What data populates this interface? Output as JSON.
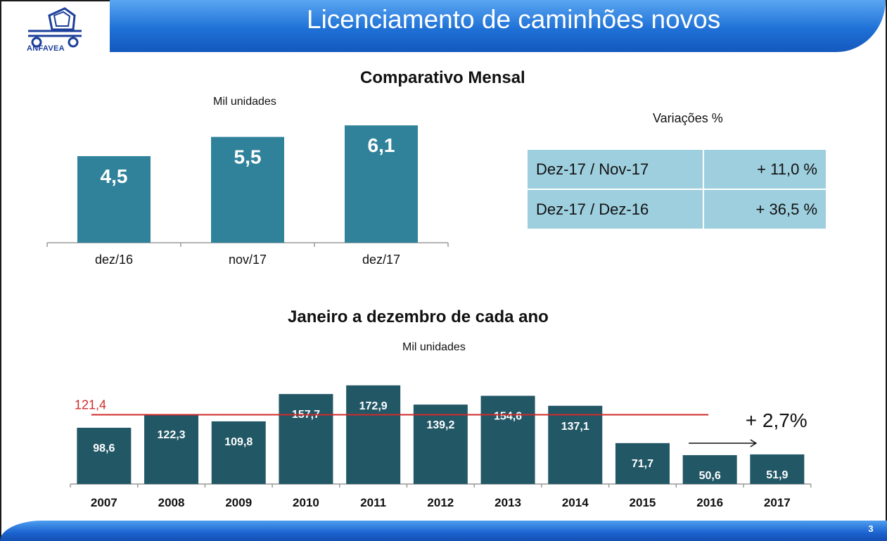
{
  "header": {
    "title": "Licenciamento de caminhões novos",
    "logo_text": "ANFAVEA"
  },
  "colors": {
    "header_band": "#1f71d6",
    "monthly_bar": "#2f829a",
    "annual_bar": "#225766",
    "reference_line": "#d02a2a",
    "table_cell": "#9ecfde"
  },
  "monthly": {
    "title": "Comparativo Mensal",
    "unit": "Mil unidades"
  },
  "variations": {
    "title": "Variações %",
    "rows": [
      {
        "label": "Dez-17 / Nov-17",
        "value": "+ 11,0 %"
      },
      {
        "label": "Dez-17 / Dez-16",
        "value": "+ 36,5 %"
      }
    ]
  },
  "annual": {
    "title": "Janeiro a dezembro de cada ano",
    "unit": "Mil unidades",
    "change_label": "+ 2,7%"
  },
  "footer": {
    "page_number": "3"
  },
  "chart_data": [
    {
      "type": "bar",
      "title": "Comparativo Mensal",
      "ylabel": "Mil unidades",
      "categories": [
        "dez/16",
        "nov/17",
        "dez/17"
      ],
      "values": [
        4.5,
        5.5,
        6.1
      ],
      "value_labels": [
        "4,5",
        "5,5",
        "6,1"
      ],
      "ylim": [
        0,
        6.4
      ],
      "grid": false
    },
    {
      "type": "bar",
      "title": "Janeiro a dezembro de cada ano",
      "ylabel": "Mil unidades",
      "categories": [
        "2007",
        "2008",
        "2009",
        "2010",
        "2011",
        "2012",
        "2013",
        "2014",
        "2015",
        "2016",
        "2017"
      ],
      "values": [
        98.6,
        122.3,
        109.8,
        157.7,
        172.9,
        139.2,
        154.6,
        137.1,
        71.7,
        50.6,
        51.9
      ],
      "value_labels": [
        "98,6",
        "122,3",
        "109,8",
        "157,7",
        "172,9",
        "139,2",
        "154,6",
        "137,1",
        "71,7",
        "50,6",
        "51,9"
      ],
      "reference_line": {
        "value": 121.4,
        "label": "121,4"
      },
      "annotation": "+ 2,7%",
      "ylim": [
        0,
        180
      ],
      "grid": false
    }
  ]
}
